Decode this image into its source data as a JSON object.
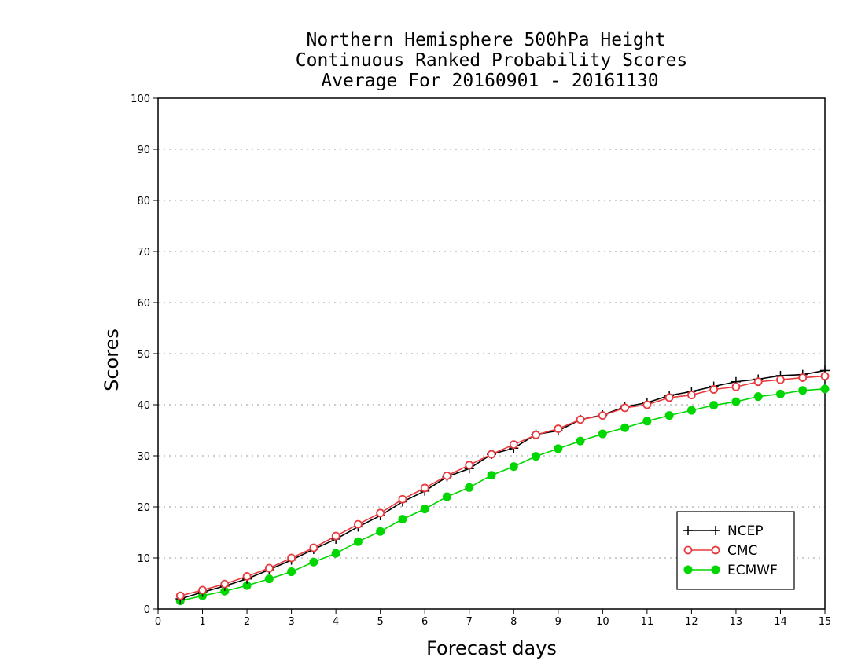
{
  "chart_data": {
    "type": "line",
    "title": [
      "Northern Hemisphere 500hPa Height",
      "Continuous Ranked Probability Scores",
      "Average For 20160901 - 20161130"
    ],
    "xlabel": "Forecast days",
    "ylabel": "Scores",
    "xlim": [
      0,
      15
    ],
    "ylim": [
      0,
      100
    ],
    "xticks": [
      0,
      1,
      2,
      3,
      4,
      5,
      6,
      7,
      8,
      9,
      10,
      11,
      12,
      13,
      14,
      15
    ],
    "yticks": [
      0,
      10,
      20,
      30,
      40,
      50,
      60,
      70,
      80,
      90,
      100
    ],
    "grid": true,
    "legend_position": "bottom-right",
    "x": [
      0.5,
      1,
      1.5,
      2,
      2.5,
      3,
      3.5,
      4,
      4.5,
      5,
      5.5,
      6,
      6.5,
      7,
      7.5,
      8,
      8.5,
      9,
      9.5,
      10,
      10.5,
      11,
      11.5,
      12,
      12.5,
      13,
      13.5,
      14,
      14.5,
      15
    ],
    "series": [
      {
        "name": "NCEP",
        "color": "#000000",
        "marker": "plus",
        "values": [
          2.0,
          3.3,
          4.5,
          5.9,
          7.7,
          9.6,
          11.7,
          13.7,
          16.1,
          18.3,
          21.0,
          23.1,
          25.9,
          27.5,
          30.3,
          31.5,
          34.2,
          34.9,
          37.1,
          38.0,
          39.6,
          40.4,
          41.8,
          42.6,
          43.6,
          44.5,
          45.0,
          45.7,
          45.9,
          46.7
        ]
      },
      {
        "name": "CMC",
        "color": "#e8393d",
        "marker": "open-circle",
        "values": [
          2.6,
          3.7,
          4.9,
          6.4,
          8.0,
          10.0,
          12.0,
          14.3,
          16.6,
          18.8,
          21.5,
          23.7,
          26.1,
          28.2,
          30.3,
          32.2,
          34.1,
          35.3,
          37.1,
          37.9,
          39.4,
          40.0,
          41.4,
          41.9,
          43.0,
          43.5,
          44.5,
          44.9,
          45.3,
          45.6
        ]
      },
      {
        "name": "ECMWF",
        "color": "#00d600",
        "marker": "filled-circle",
        "values": [
          1.6,
          2.6,
          3.5,
          4.6,
          5.9,
          7.3,
          9.2,
          10.9,
          13.2,
          15.2,
          17.6,
          19.6,
          22.0,
          23.8,
          26.2,
          27.9,
          29.9,
          31.4,
          32.9,
          34.3,
          35.5,
          36.8,
          37.9,
          38.9,
          39.9,
          40.6,
          41.6,
          42.1,
          42.8,
          43.1
        ]
      }
    ]
  }
}
